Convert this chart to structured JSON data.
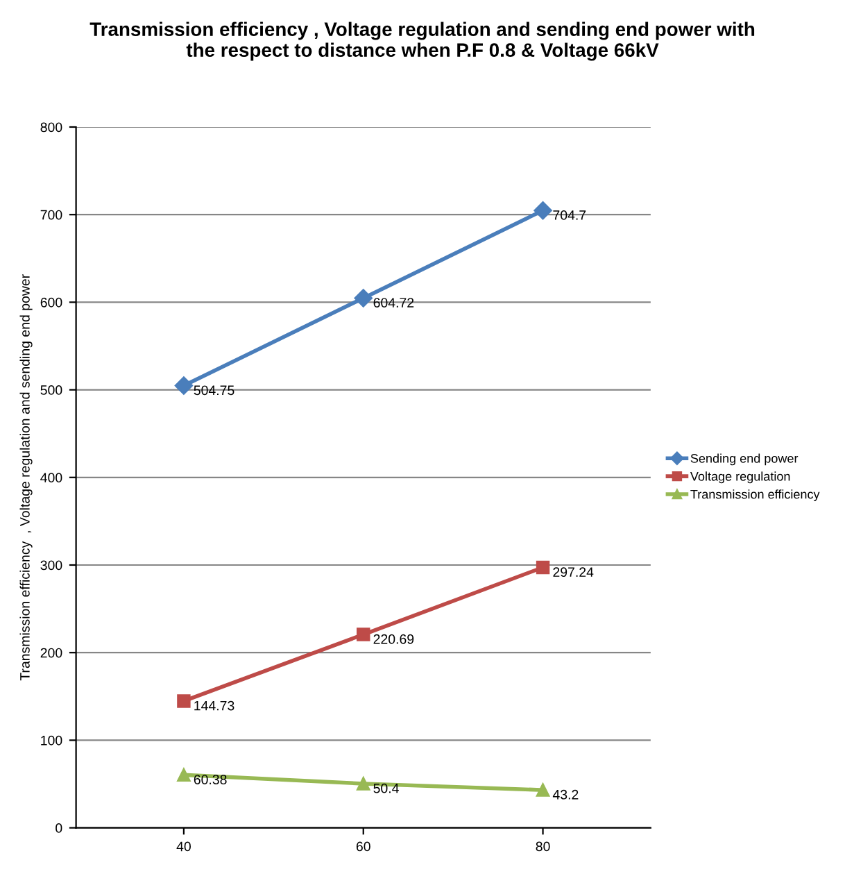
{
  "chart_data": {
    "type": "line",
    "title": "Transmission efficiency , Voltage regulation and sending end power with\nthe respect to distance when P.F 0.8 & Voltage 66kV",
    "ylabel": "Transmission efficiency  , Voltage regulation and sending end power",
    "categories": [
      "40",
      "60",
      "80"
    ],
    "series": [
      {
        "name": "Sending end power",
        "color": "#4a7ebb",
        "marker": "diamond",
        "values": [
          504.75,
          604.72,
          704.7
        ]
      },
      {
        "name": "Voltage regulation",
        "color": "#be4b48",
        "marker": "square",
        "values": [
          144.73,
          220.69,
          297.24
        ]
      },
      {
        "name": "Transmission efficiency",
        "color": "#98b954",
        "marker": "triangle",
        "values": [
          60.38,
          50.4,
          43.2
        ]
      }
    ],
    "ylim": [
      0,
      800
    ],
    "yticks": [
      0,
      100,
      200,
      300,
      400,
      500,
      600,
      700,
      800
    ],
    "grid": "y",
    "legend": "right",
    "data_labels": true,
    "line_style": "solid"
  }
}
